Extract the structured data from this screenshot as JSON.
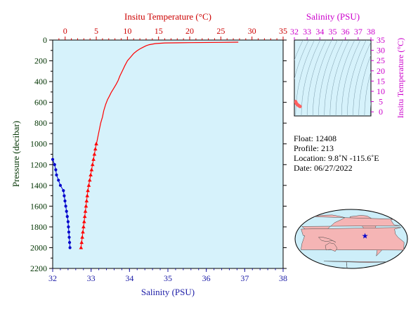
{
  "chart_data": [
    {
      "type": "line",
      "title": "",
      "x_top_label": "Insitu Temperature (°C)",
      "x_bottom_label": "Salinity (PSU)",
      "ylabel": "Pressure (decibar)",
      "temperature_range": [
        -2,
        35
      ],
      "salinity_range": [
        32,
        38
      ],
      "pressure_range": [
        0,
        2200
      ],
      "temperature_ticks": [
        "0",
        "5",
        "10",
        "15",
        "20",
        "25",
        "30",
        "35"
      ],
      "salinity_ticks": [
        "32",
        "33",
        "34",
        "35",
        "36",
        "37",
        "38"
      ],
      "pressure_ticks": [
        "0",
        "200",
        "400",
        "600",
        "800",
        "1000",
        "1200",
        "1400",
        "1600",
        "1800",
        "2000",
        "2200"
      ],
      "series": [
        {
          "name": "temperature",
          "color": "#ff0000",
          "points": [
            [
              27.8,
              20
            ],
            [
              25,
              22
            ],
            [
              20,
              25
            ],
            [
              16,
              28
            ],
            [
              14.5,
              34
            ],
            [
              13.5,
              45
            ],
            [
              13,
              55
            ],
            [
              12.5,
              70
            ],
            [
              12,
              85
            ],
            [
              11.5,
              105
            ],
            [
              11,
              130
            ],
            [
              10.5,
              165
            ],
            [
              10,
              200
            ],
            [
              9.6,
              245
            ],
            [
              9.2,
              295
            ],
            [
              8.8,
              345
            ],
            [
              8.5,
              390
            ],
            [
              8.2,
              425
            ],
            [
              7.8,
              465
            ],
            [
              7.4,
              505
            ],
            [
              7.1,
              540
            ],
            [
              6.8,
              575
            ],
            [
              6.5,
              620
            ],
            [
              6.2,
              680
            ],
            [
              6.0,
              740
            ],
            [
              5.7,
              800
            ],
            [
              5.5,
              860
            ],
            [
              5.3,
              920
            ],
            [
              5.1,
              980
            ],
            [
              5.0,
              1000
            ]
          ],
          "markers": [
            [
              5.0,
              1000
            ],
            [
              4.85,
              1050
            ],
            [
              4.7,
              1100
            ],
            [
              4.55,
              1150
            ],
            [
              4.4,
              1200
            ],
            [
              4.25,
              1250
            ],
            [
              4.1,
              1300
            ],
            [
              3.95,
              1350
            ],
            [
              3.8,
              1400
            ],
            [
              3.65,
              1450
            ],
            [
              3.55,
              1500
            ],
            [
              3.45,
              1550
            ],
            [
              3.35,
              1600
            ],
            [
              3.25,
              1650
            ],
            [
              3.15,
              1700
            ],
            [
              3.05,
              1750
            ],
            [
              2.95,
              1800
            ],
            [
              2.85,
              1850
            ],
            [
              2.75,
              1900
            ],
            [
              2.65,
              1950
            ],
            [
              2.55,
              2000
            ]
          ]
        },
        {
          "name": "salinity",
          "color": "#0000cc",
          "markers": [
            [
              32.0,
              1150
            ],
            [
              32.05,
              1200
            ],
            [
              32.08,
              1250
            ],
            [
              32.1,
              1300
            ],
            [
              32.15,
              1350
            ],
            [
              32.2,
              1400
            ],
            [
              32.28,
              1450
            ],
            [
              32.3,
              1500
            ],
            [
              32.32,
              1550
            ],
            [
              32.34,
              1600
            ],
            [
              32.36,
              1650
            ],
            [
              32.38,
              1700
            ],
            [
              32.4,
              1750
            ],
            [
              32.41,
              1800
            ],
            [
              32.42,
              1850
            ],
            [
              32.43,
              1900
            ],
            [
              32.44,
              1950
            ],
            [
              32.45,
              2000
            ]
          ]
        }
      ]
    },
    {
      "type": "scatter",
      "title": "",
      "xlabel": "Salinity (PSU)",
      "ylabel": "Insitu Temperature (°C)",
      "salinity_range": [
        32,
        38
      ],
      "temperature_range": [
        -2,
        35
      ],
      "salinity_ticks": [
        "32",
        "33",
        "34",
        "35",
        "36",
        "37",
        "38"
      ],
      "temperature_ticks": [
        "0",
        "5",
        "10",
        "15",
        "20",
        "25",
        "30",
        "35"
      ],
      "contours": true,
      "points": [
        [
          32.1,
          5.0
        ],
        [
          32.12,
          4.6
        ],
        [
          32.15,
          4.2
        ],
        [
          32.2,
          3.8
        ],
        [
          32.25,
          3.5
        ],
        [
          32.3,
          3.2
        ],
        [
          32.35,
          3.0
        ],
        [
          32.4,
          2.8
        ],
        [
          32.45,
          2.6
        ]
      ],
      "point_color": "#ff6060"
    }
  ],
  "info": {
    "float": "Float:  12408",
    "profile": "Profile:  213",
    "location": "Location:  9.8˚N  -115.6˚E",
    "date": "Date:  06/27/2022"
  },
  "map": {
    "marker_lon": -115.6,
    "marker_lat": 9.8,
    "ocean_color": "#cdeef9",
    "land_color": "#f5b5b5"
  }
}
